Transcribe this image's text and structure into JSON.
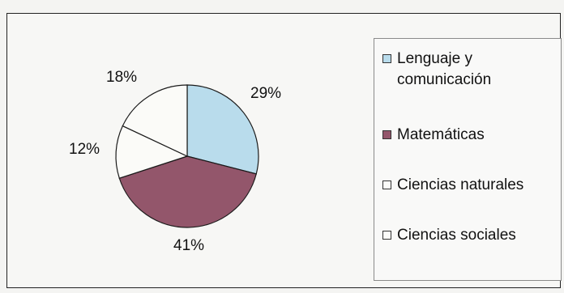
{
  "chart_data": {
    "type": "pie",
    "title": "",
    "categories": [
      "Lenguaje y comunicación",
      "Matemáticas",
      "Ciencias naturales",
      "Ciencias sociales"
    ],
    "values": [
      29,
      41,
      12,
      18
    ],
    "labels": [
      "29%",
      "41%",
      "12%",
      "18%"
    ],
    "colors": [
      "#b9dcec",
      "#93566b",
      "#fbfbf8",
      "#fbfbf8"
    ],
    "start_angle_deg": 0,
    "direction": "clockwise",
    "legend_position": "right"
  }
}
